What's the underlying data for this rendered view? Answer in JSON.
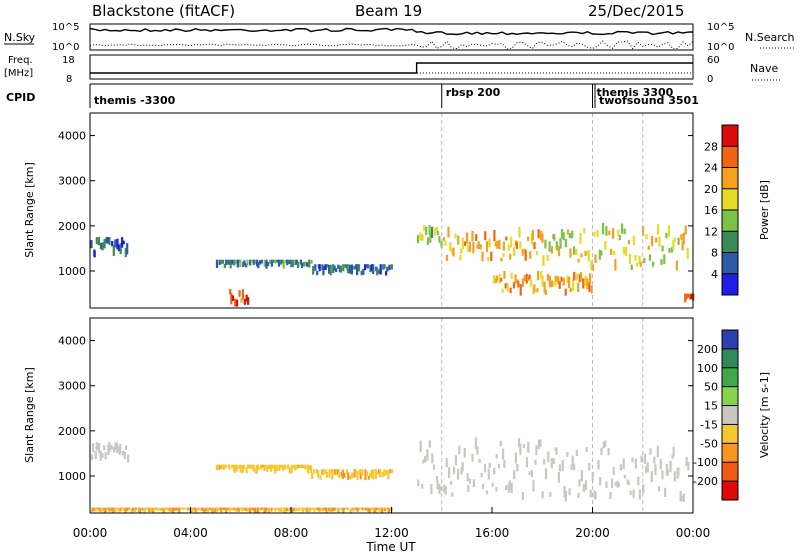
{
  "header": {
    "station": "Blackstone (fitACF)",
    "beam": "Beam 19",
    "date": "25/Dec/2015"
  },
  "status_panel": {
    "left_labels": {
      "nsky": "N.Sky",
      "freq": "Freq.",
      "freq_unit": "[MHz]",
      "cpid": "CPID"
    },
    "right_labels": {
      "nsearch": "N.Search",
      "nave": "Nave"
    },
    "sky_ticks": [
      "10^5",
      "10^0"
    ],
    "freq_ticks": [
      "18",
      "8"
    ],
    "search_ticks": [
      "10^5",
      "10^0"
    ],
    "nave_ticks": [
      "60",
      "0"
    ],
    "cpid_segments": [
      {
        "label": "themis -3300",
        "start_hour": 0
      },
      {
        "label": "rbsp 200",
        "start_hour": 14
      },
      {
        "label": "themis 3300",
        "start_hour": 20
      },
      {
        "label": "twofsound 3501",
        "start_hour": 20.1
      }
    ],
    "freq_change_hour": 13,
    "freq_levels_mhz": {
      "before": 10,
      "after": 15
    }
  },
  "chart_data": [
    {
      "type": "heatmap",
      "title": "",
      "xlabel": "Time UT",
      "ylabel": "Slant Range [km]",
      "xlim": [
        0,
        24
      ],
      "ylim": [
        180,
        4500
      ],
      "yticks": [
        1000,
        2000,
        3000,
        4000
      ],
      "colorbar": {
        "label": "Power [dB]",
        "ticks": [
          "4",
          "8",
          "12",
          "16",
          "20",
          "24",
          "28"
        ],
        "colors": [
          "#1e1ee6",
          "#2c5aa8",
          "#3a8a5a",
          "#7cc24a",
          "#e6dc28",
          "#f5a01e",
          "#f06414",
          "#dc0a0a"
        ],
        "range": [
          0,
          32
        ]
      },
      "features": [
        {
          "name": "echo band",
          "t_start": 0.0,
          "t_end": 1.5,
          "range_km": [
            1300,
            1750
          ],
          "level": 6
        },
        {
          "name": "echo band",
          "t_start": 5.0,
          "t_end": 8.8,
          "range_km": [
            1050,
            1250
          ],
          "level": 9
        },
        {
          "name": "echo band",
          "t_start": 8.8,
          "t_end": 12.0,
          "range_km": [
            900,
            1150
          ],
          "level": 7
        },
        {
          "name": "rising echo",
          "t_start": 13.0,
          "t_end": 14.0,
          "range_km": [
            1500,
            2100
          ],
          "level": 14
        },
        {
          "name": "main arc",
          "t_start": 14.0,
          "t_end": 18.0,
          "range_km": [
            1200,
            2000
          ],
          "level": 22
        },
        {
          "name": "lower arc",
          "t_start": 16.0,
          "t_end": 20.0,
          "range_km": [
            450,
            1000
          ],
          "level": 22
        },
        {
          "name": "upper arc",
          "t_start": 18.0,
          "t_end": 23.8,
          "range_km": [
            1000,
            2200
          ],
          "level": 18
        },
        {
          "name": "near-range",
          "t_start": 5.5,
          "t_end": 6.3,
          "range_km": [
            200,
            600
          ],
          "level": 26
        },
        {
          "name": "near-range",
          "t_start": 23.6,
          "t_end": 24.0,
          "range_km": [
            200,
            500
          ],
          "level": 28
        }
      ]
    },
    {
      "type": "heatmap",
      "title": "",
      "xlabel": "Time UT",
      "ylabel": "Slant Range [km]",
      "xlim": [
        0,
        24
      ],
      "ylim": [
        180,
        4500
      ],
      "xticks": [
        "00:00",
        "04:00",
        "08:00",
        "12:00",
        "16:00",
        "20:00",
        "00:00"
      ],
      "yticks": [
        1000,
        2000,
        3000,
        4000
      ],
      "colorbar": {
        "label": "Velocity [m s-1]",
        "ticks": [
          "200",
          "100",
          "50",
          "15",
          "-15",
          "-50",
          "-100",
          "-200"
        ],
        "colors": [
          "#2a40b0",
          "#2e8a5a",
          "#3fa84a",
          "#8ad24e",
          "#c8c8c0",
          "#f5c832",
          "#f59620",
          "#f05a14",
          "#dc0a0a"
        ],
        "range": [
          -250,
          250
        ]
      },
      "features": [
        {
          "name": "ground scatter",
          "t_start": 0.0,
          "t_end": 1.5,
          "range_km": [
            1300,
            1750
          ],
          "velocity": 0
        },
        {
          "name": "negative velocity band",
          "t_start": 5.0,
          "t_end": 8.8,
          "range_km": [
            1050,
            1250
          ],
          "velocity": -40
        },
        {
          "name": "negative velocity band",
          "t_start": 8.8,
          "t_end": 12.0,
          "range_km": [
            900,
            1150
          ],
          "velocity": -40
        },
        {
          "name": "ground scatter arc",
          "t_start": 13.0,
          "t_end": 23.8,
          "range_km": [
            400,
            2200
          ],
          "velocity": 0
        },
        {
          "name": "near-range",
          "t_start": 0.0,
          "t_end": 12.0,
          "range_km": [
            180,
            300
          ],
          "velocity": -50
        }
      ]
    }
  ]
}
